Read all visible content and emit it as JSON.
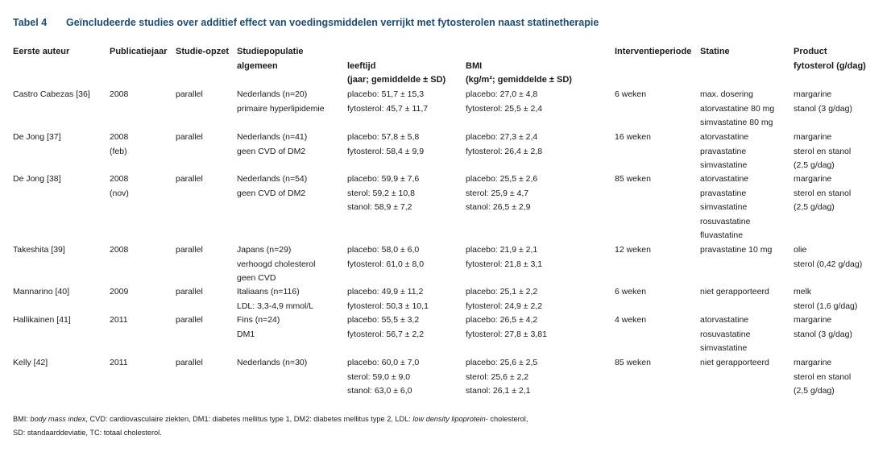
{
  "caption": {
    "number": "Tabel 4",
    "title": "Geïncludeerde studies over additief effect van voedingsmiddelen verrijkt met fytosterolen naast statinetherapie"
  },
  "columns": {
    "author": "Eerste auteur",
    "year": "Publicatiejaar",
    "design": "Studie-opzet",
    "population": [
      "Studiepopulatie",
      "algemeen"
    ],
    "age": [
      "leeftijd",
      "(jaar; gemiddelde ± SD)"
    ],
    "bmi": [
      "BMI",
      "(kg/m²; gemiddelde ± SD)"
    ],
    "period": "Interventieperiode",
    "statin": "Statine",
    "product": [
      "Product",
      "fytosterol (g/dag)"
    ]
  },
  "rows": [
    {
      "author": [
        "Castro Cabezas [36]"
      ],
      "year": [
        "2008"
      ],
      "design": [
        "parallel"
      ],
      "population": [
        "Nederlands (n=20)",
        "primaire hyperlipidemie"
      ],
      "age": [
        "placebo: 51,7 ± 15,3",
        "fytosterol: 45,7 ± 11,7"
      ],
      "bmi": [
        "placebo: 27,0 ± 4,8",
        "fytosterol: 25,5 ± 2,4"
      ],
      "period": [
        "6 weken"
      ],
      "statin": [
        "max. dosering",
        "atorvastatine 80 mg",
        "simvastatine 80 mg"
      ],
      "product": [
        "margarine",
        "stanol (3 g/dag)"
      ]
    },
    {
      "author": [
        "De Jong [37]"
      ],
      "year": [
        "2008",
        "(feb)"
      ],
      "design": [
        "parallel"
      ],
      "population": [
        "Nederlands (n=41)",
        "geen CVD of DM2"
      ],
      "age": [
        "placebo: 57,8 ± 5,8",
        "fytosterol: 58,4 ± 9,9"
      ],
      "bmi": [
        "placebo: 27,3 ± 2,4",
        "fytosterol: 26,4 ± 2,8"
      ],
      "period": [
        "16 weken"
      ],
      "statin": [
        "atorvastatine",
        "pravastatine",
        "simvastatine"
      ],
      "product": [
        "margarine",
        "sterol en stanol",
        "(2,5 g/dag)"
      ]
    },
    {
      "author": [
        "De Jong [38]"
      ],
      "year": [
        "2008",
        "(nov)"
      ],
      "design": [
        "parallel"
      ],
      "population": [
        "Nederlands (n=54)",
        "geen CVD of DM2"
      ],
      "age": [
        "placebo: 59,9 ± 7,6",
        "sterol: 59,2 ± 10,8",
        "stanol: 58,9 ± 7,2"
      ],
      "bmi": [
        "placebo: 25,5 ± 2,6",
        "sterol: 25,9 ± 4,7",
        "stanol: 26,5 ± 2,9"
      ],
      "period": [
        "85 weken"
      ],
      "statin": [
        "atorvastatine",
        "pravastatine",
        "simvastatine",
        "rosuvastatine",
        "fluvastatine"
      ],
      "product": [
        "margarine",
        "sterol en stanol",
        "(2,5 g/dag)"
      ]
    },
    {
      "author": [
        "Takeshita [39]"
      ],
      "year": [
        "2008"
      ],
      "design": [
        "parallel"
      ],
      "population": [
        "Japans (n=29)",
        "verhoogd cholesterol",
        "geen CVD"
      ],
      "age": [
        "placebo: 58,0 ± 6,0",
        "fytosterol: 61,0 ± 8,0"
      ],
      "bmi": [
        "placebo: 21,9 ± 2,1",
        "fytosterol: 21,8 ± 3,1"
      ],
      "period": [
        "12 weken"
      ],
      "statin": [
        "pravastatine 10 mg"
      ],
      "product": [
        "olie",
        "sterol (0,42 g/dag)"
      ]
    },
    {
      "author": [
        "Mannarino [40]"
      ],
      "year": [
        "2009"
      ],
      "design": [
        "parallel"
      ],
      "population": [
        "Italiaans (n=116)",
        "LDL: 3,3-4,9 mmol/L"
      ],
      "age": [
        "placebo: 49,9 ± 11,2",
        "fytosterol: 50,3 ± 10,1"
      ],
      "bmi": [
        "placebo: 25,1 ± 2,2",
        "fytosterol: 24,9 ± 2,2"
      ],
      "period": [
        "6 weken"
      ],
      "statin": [
        "niet gerapporteerd"
      ],
      "product": [
        "melk",
        "sterol (1,6 g/dag)"
      ]
    },
    {
      "author": [
        "Hallikainen [41]"
      ],
      "year": [
        "2011"
      ],
      "design": [
        "parallel"
      ],
      "population": [
        "Fins (n=24)",
        "DM1"
      ],
      "age": [
        "placebo: 55,5 ± 3,2",
        "fytosterol: 56,7 ± 2,2"
      ],
      "bmi": [
        "placebo: 26,5 ± 4,2",
        "fytosterol: 27,8 ± 3,81"
      ],
      "period": [
        "4 weken"
      ],
      "statin": [
        "atorvastatine",
        "rosuvastatine",
        "simvastatine"
      ],
      "product": [
        "margarine",
        "stanol (3 g/dag)"
      ]
    },
    {
      "author": [
        "Kelly [42]"
      ],
      "year": [
        "2011"
      ],
      "design": [
        "parallel"
      ],
      "population": [
        "Nederlands (n=30)"
      ],
      "age": [
        "placebo: 60,0 ± 7,0",
        "sterol: 59,0 ± 9,0",
        "stanol: 63,0 ± 6,0"
      ],
      "bmi": [
        "placebo: 25,6 ± 2,5",
        "sterol: 25,6 ± 2,2",
        "stanol: 26,1 ± 2,1"
      ],
      "period": [
        "85 weken"
      ],
      "statin": [
        "niet gerapporteerd"
      ],
      "product": [
        "margarine",
        "sterol en stanol",
        "(2,5 g/dag)"
      ]
    }
  ],
  "footnote": {
    "line1": [
      {
        "text": "BMI: ",
        "italic": false
      },
      {
        "text": "body mass index",
        "italic": true
      },
      {
        "text": ", CVD: cardiovasculaire ziekten, DM1: diabetes mellitus type 1, DM2: diabetes mellitus type 2, LDL: ",
        "italic": false
      },
      {
        "text": "low density lipoprotein",
        "italic": true
      },
      {
        "text": "- cholesterol,",
        "italic": false
      }
    ],
    "line2": "SD: standaarddeviatie, TC: totaal cholesterol."
  }
}
